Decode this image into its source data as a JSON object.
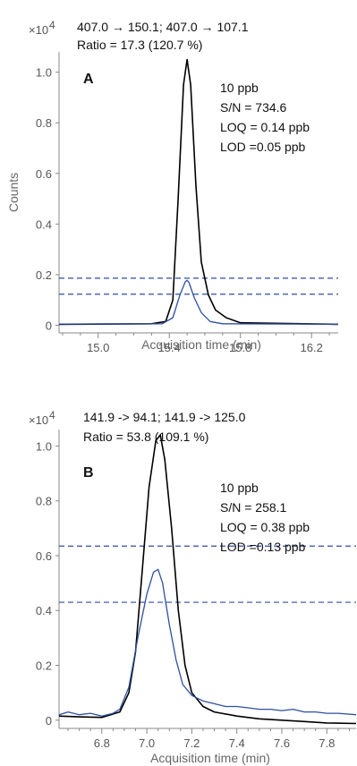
{
  "chart_data": [
    {
      "type": "line",
      "panel_label": "A",
      "transitions": "407.0 → 150.1; 407.0 → 107.1",
      "ratio": "Ratio = 17.3 (120.7 %)",
      "annotations": [
        "10 ppb",
        "S/N = 734.6",
        "LOQ = 0.14 ppb",
        "LOD =0.05 ppb"
      ],
      "multiplier": "×10",
      "multiplier_exp": "4",
      "xlabel": "Acquisition time (min)",
      "ylabel": "Counts",
      "xlim": [
        14.78,
        16.35
      ],
      "ylim": [
        -0.03,
        1.08
      ],
      "xticks": [
        15.0,
        15.4,
        15.8,
        16.2
      ],
      "xtick_labels": [
        "15.0",
        "15.4",
        "15.8",
        "16.2"
      ],
      "yticks": [
        0,
        0.2,
        0.4,
        0.6,
        0.8,
        1.0
      ],
      "ytick_labels": [
        "0",
        "0.2",
        "0.4",
        "0.6",
        "0.8",
        "1.0"
      ],
      "dashed_levels": [
        0.186,
        0.123
      ],
      "colors": {
        "quantifier": "#000000",
        "qualifier": "#2e4fa0",
        "dashed": "#2e4fa0"
      },
      "series": [
        {
          "role": "quantifier",
          "x": [
            14.78,
            15.3,
            15.38,
            15.42,
            15.45,
            15.48,
            15.5,
            15.52,
            15.55,
            15.58,
            15.62,
            15.66,
            15.72,
            15.8,
            16.35
          ],
          "y": [
            0.004,
            0.006,
            0.015,
            0.1,
            0.5,
            0.95,
            1.05,
            0.95,
            0.55,
            0.25,
            0.12,
            0.06,
            0.03,
            0.01,
            0.004
          ]
        },
        {
          "role": "qualifier",
          "x": [
            14.78,
            15.36,
            15.42,
            15.46,
            15.49,
            15.5,
            15.51,
            15.54,
            15.58,
            15.63,
            15.7,
            16.35
          ],
          "y": [
            0.005,
            0.006,
            0.03,
            0.12,
            0.172,
            0.178,
            0.17,
            0.11,
            0.05,
            0.015,
            0.006,
            0.004
          ]
        }
      ]
    },
    {
      "type": "line",
      "panel_label": "B",
      "transitions": "141.9   -> 94.1; 141.9   -> 125.0",
      "ratio": "Ratio = 53.8 (109.1 %)",
      "annotations": [
        "10 ppb",
        "S/N = 258.1",
        "LOQ = 0.38 ppb",
        "LOD =0.13 ppb"
      ],
      "multiplier": "×10",
      "multiplier_exp": "4",
      "xlabel": "Acquisition time (min)",
      "ylabel": "",
      "xlim": [
        6.61,
        7.93
      ],
      "ylim": [
        -0.03,
        1.06
      ],
      "xticks": [
        6.8,
        7.0,
        7.2,
        7.4,
        7.6,
        7.8
      ],
      "xtick_labels": [
        "6.8",
        "7.0",
        "7.2",
        "7.4",
        "7.6",
        "7.8"
      ],
      "yticks": [
        0,
        0.2,
        0.4,
        0.6,
        0.8,
        1.0
      ],
      "ytick_labels": [
        "0",
        "0.2",
        "0.4",
        "0.6",
        "0.8",
        "1.0"
      ],
      "dashed_levels": [
        0.635,
        0.43
      ],
      "colors": {
        "quantifier": "#000000",
        "qualifier": "#2e4fa0",
        "dashed": "#2e4fa0"
      },
      "series": [
        {
          "role": "quantifier",
          "x": [
            6.61,
            6.7,
            6.8,
            6.88,
            6.92,
            6.95,
            6.98,
            7.01,
            7.04,
            7.06,
            7.08,
            7.11,
            7.14,
            7.17,
            7.2,
            7.25,
            7.3,
            7.4,
            7.5,
            7.6,
            7.7,
            7.8,
            7.93
          ],
          "y": [
            0.015,
            0.012,
            0.01,
            0.03,
            0.1,
            0.25,
            0.55,
            0.85,
            1.02,
            1.04,
            0.95,
            0.7,
            0.4,
            0.2,
            0.1,
            0.05,
            0.03,
            0.015,
            0.005,
            0.0,
            -0.005,
            -0.01,
            -0.012
          ]
        },
        {
          "role": "qualifier",
          "x": [
            6.61,
            6.65,
            6.7,
            6.75,
            6.8,
            6.85,
            6.88,
            6.92,
            6.96,
            7.0,
            7.03,
            7.05,
            7.07,
            7.1,
            7.13,
            7.16,
            7.2,
            7.25,
            7.3,
            7.35,
            7.4,
            7.45,
            7.5,
            7.55,
            7.6,
            7.65,
            7.7,
            7.75,
            7.8,
            7.85,
            7.93
          ],
          "y": [
            0.02,
            0.03,
            0.02,
            0.025,
            0.015,
            0.025,
            0.04,
            0.12,
            0.3,
            0.46,
            0.54,
            0.55,
            0.5,
            0.35,
            0.22,
            0.13,
            0.09,
            0.07,
            0.06,
            0.05,
            0.05,
            0.045,
            0.04,
            0.04,
            0.035,
            0.04,
            0.03,
            0.03,
            0.025,
            0.025,
            0.02
          ]
        }
      ]
    }
  ]
}
